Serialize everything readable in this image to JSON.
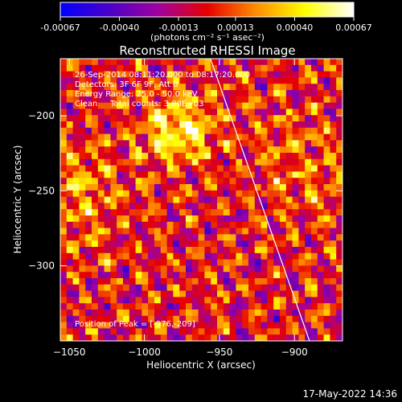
{
  "colorbar": {
    "tick_labels": [
      "-0.00067",
      "-0.00040",
      "-0.00013",
      "0.00013",
      "0.00040",
      "0.00067"
    ],
    "unit_label": "(photons cm⁻² s⁻¹ asec⁻²)",
    "range": [
      -0.00067,
      0.00067
    ],
    "colors": [
      "#0000ff",
      "#4b00c8",
      "#a000a0",
      "#e60000",
      "#ff8c00",
      "#ffff00",
      "#ffffff"
    ]
  },
  "chart_data": {
    "type": "heatmap",
    "title": "Reconstructed RHESSI Image",
    "xlabel": "Heliocentric X (arcsec)",
    "ylabel": "Heliocentric Y (arcsec)",
    "xlim": [
      -1056,
      -868
    ],
    "ylim": [
      -350,
      -162
    ],
    "x_ticks": [
      -1050,
      -1000,
      -950,
      -900
    ],
    "y_ticks": [
      -200,
      -250,
      -300
    ],
    "x_tick_labels": [
      "−1050",
      "−1000",
      "−950",
      "−900"
    ],
    "y_tick_labels": [
      "−200",
      "−250",
      "−300"
    ],
    "info_lines": [
      "26-Sep-2014 08:11:20.000 to 08:17:20.000",
      "Detectors: 3F 6F 9F, Att 0",
      "Energy Range: 25.0 - 50.0 keV",
      "Clean     Total counts: 3.80E+03"
    ],
    "peak_label": "Position of Peak = [-976,-209]",
    "peak": [
      -976,
      -209
    ],
    "limb_line": [
      [
        -956,
        -162
      ],
      [
        -890,
        -350
      ]
    ]
  },
  "footer": {
    "date": "17-May-2022 14:36"
  }
}
